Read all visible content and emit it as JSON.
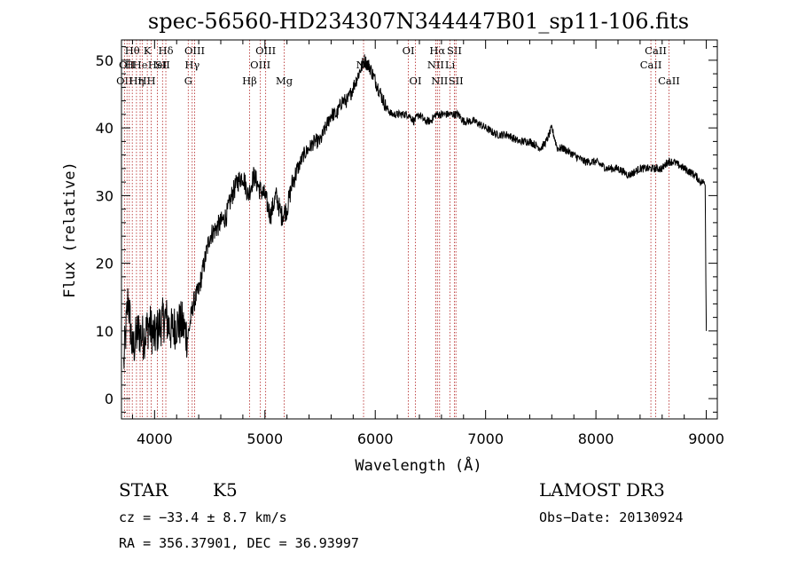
{
  "chart_data": {
    "type": "line",
    "title": "spec-56560-HD234307N344447B01_sp11-106.fits",
    "xlabel": "Wavelength (Å)",
    "ylabel": "Flux (relative)",
    "xlim": [
      3700,
      9100
    ],
    "ylim": [
      -3,
      53
    ],
    "x_ticks": [
      4000,
      5000,
      6000,
      7000,
      8000,
      9000
    ],
    "y_ticks": [
      0,
      10,
      20,
      30,
      40,
      50
    ],
    "grid": false,
    "series": [
      {
        "x": [
          3720,
          3760,
          3800,
          3850,
          3900,
          3950,
          4000,
          4050,
          4100,
          4150,
          4200,
          4250,
          4300,
          4350,
          4400,
          4450,
          4500,
          4550,
          4600,
          4650,
          4700,
          4750,
          4800,
          4850,
          4900,
          4950,
          5000,
          5050,
          5100,
          5150,
          5200,
          5250,
          5300,
          5350,
          5400,
          5450,
          5500,
          5550,
          5600,
          5650,
          5700,
          5750,
          5800,
          5850,
          5900,
          5950,
          6000,
          6050,
          6100,
          6150,
          6200,
          6250,
          6300,
          6350,
          6400,
          6450,
          6500,
          6550,
          6600,
          6650,
          6700,
          6750,
          6800,
          6900,
          7000,
          7100,
          7200,
          7300,
          7400,
          7500,
          7550,
          7600,
          7650,
          7700,
          7800,
          7900,
          8000,
          8100,
          8200,
          8300,
          8400,
          8500,
          8600,
          8650,
          8700,
          8800,
          8900,
          8950,
          8990,
          9000
        ],
        "y": [
          5,
          15,
          7,
          10,
          9,
          11,
          9,
          11,
          12,
          10,
          11,
          11,
          9,
          14,
          16,
          20,
          24,
          25,
          26,
          27,
          30,
          32,
          33,
          30,
          33,
          31,
          30,
          27,
          30,
          27,
          28,
          32,
          34,
          36,
          37,
          38,
          38,
          40,
          42,
          42,
          44,
          44,
          46,
          48,
          50,
          49,
          47,
          45,
          43,
          42,
          42,
          42,
          42,
          41,
          42,
          41,
          41,
          42,
          42,
          42,
          42,
          42,
          41,
          41,
          40,
          39,
          39,
          38,
          38,
          37,
          38,
          40,
          37,
          37,
          36,
          35,
          35,
          34,
          34,
          33,
          34,
          34,
          34,
          35,
          35,
          34,
          33,
          32,
          32,
          10
        ]
      }
    ],
    "line_markers": [
      {
        "x": 3727,
        "label": "OII",
        "row": 3
      },
      {
        "x": 3750,
        "label": "OII",
        "row": 2
      },
      {
        "x": 3771,
        "label": "H",
        "row": 2
      },
      {
        "x": 3798,
        "label": "Hθ",
        "row": 1
      },
      {
        "x": 3836,
        "label": "Hη",
        "row": 3
      },
      {
        "x": 3869,
        "label": "He",
        "row": 2
      },
      {
        "x": 3889,
        "label": "H",
        "row": 3
      },
      {
        "x": 3934,
        "label": "K",
        "row": 1
      },
      {
        "x": 3969,
        "label": "H",
        "row": 3
      },
      {
        "x": 4026,
        "label": "HeI",
        "row": 2
      },
      {
        "x": 4072,
        "label": "SII",
        "row": 2
      },
      {
        "x": 4102,
        "label": "Hδ",
        "row": 1
      },
      {
        "x": 4305,
        "label": "G",
        "row": 3
      },
      {
        "x": 4341,
        "label": "Hγ",
        "row": 2
      },
      {
        "x": 4363,
        "label": "OIII",
        "row": 1
      },
      {
        "x": 4861,
        "label": "Hβ",
        "row": 3
      },
      {
        "x": 4959,
        "label": "OIII",
        "row": 2
      },
      {
        "x": 5007,
        "label": "OIII",
        "row": 1
      },
      {
        "x": 5175,
        "label": "Mg",
        "row": 3
      },
      {
        "x": 5894,
        "label": "Na",
        "row": 2
      },
      {
        "x": 6300,
        "label": "OI",
        "row": 1
      },
      {
        "x": 6364,
        "label": "OI",
        "row": 3
      },
      {
        "x": 6548,
        "label": "NII",
        "row": 2
      },
      {
        "x": 6563,
        "label": "Hα",
        "row": 1
      },
      {
        "x": 6583,
        "label": "NII",
        "row": 3
      },
      {
        "x": 6678,
        "label": "Li",
        "row": 2
      },
      {
        "x": 6717,
        "label": "SII",
        "row": 1
      },
      {
        "x": 6731,
        "label": "SII",
        "row": 3
      },
      {
        "x": 8498,
        "label": "CaII",
        "row": 2
      },
      {
        "x": 8542,
        "label": "CaII",
        "row": 1
      },
      {
        "x": 8662,
        "label": "CaII",
        "row": 3
      }
    ]
  },
  "info": {
    "object_class": "STAR",
    "subclass": "K5",
    "survey": "LAMOST DR3",
    "redshift": "cz = −33.4 ± 8.7 km/s",
    "obs_date": "Obs−Date: 20130924",
    "coords": "RA = 356.37901, DEC =  36.93997"
  },
  "colors": {
    "spectrum": "#000000",
    "marker_line": "#b22222",
    "background": "#ffffff"
  }
}
